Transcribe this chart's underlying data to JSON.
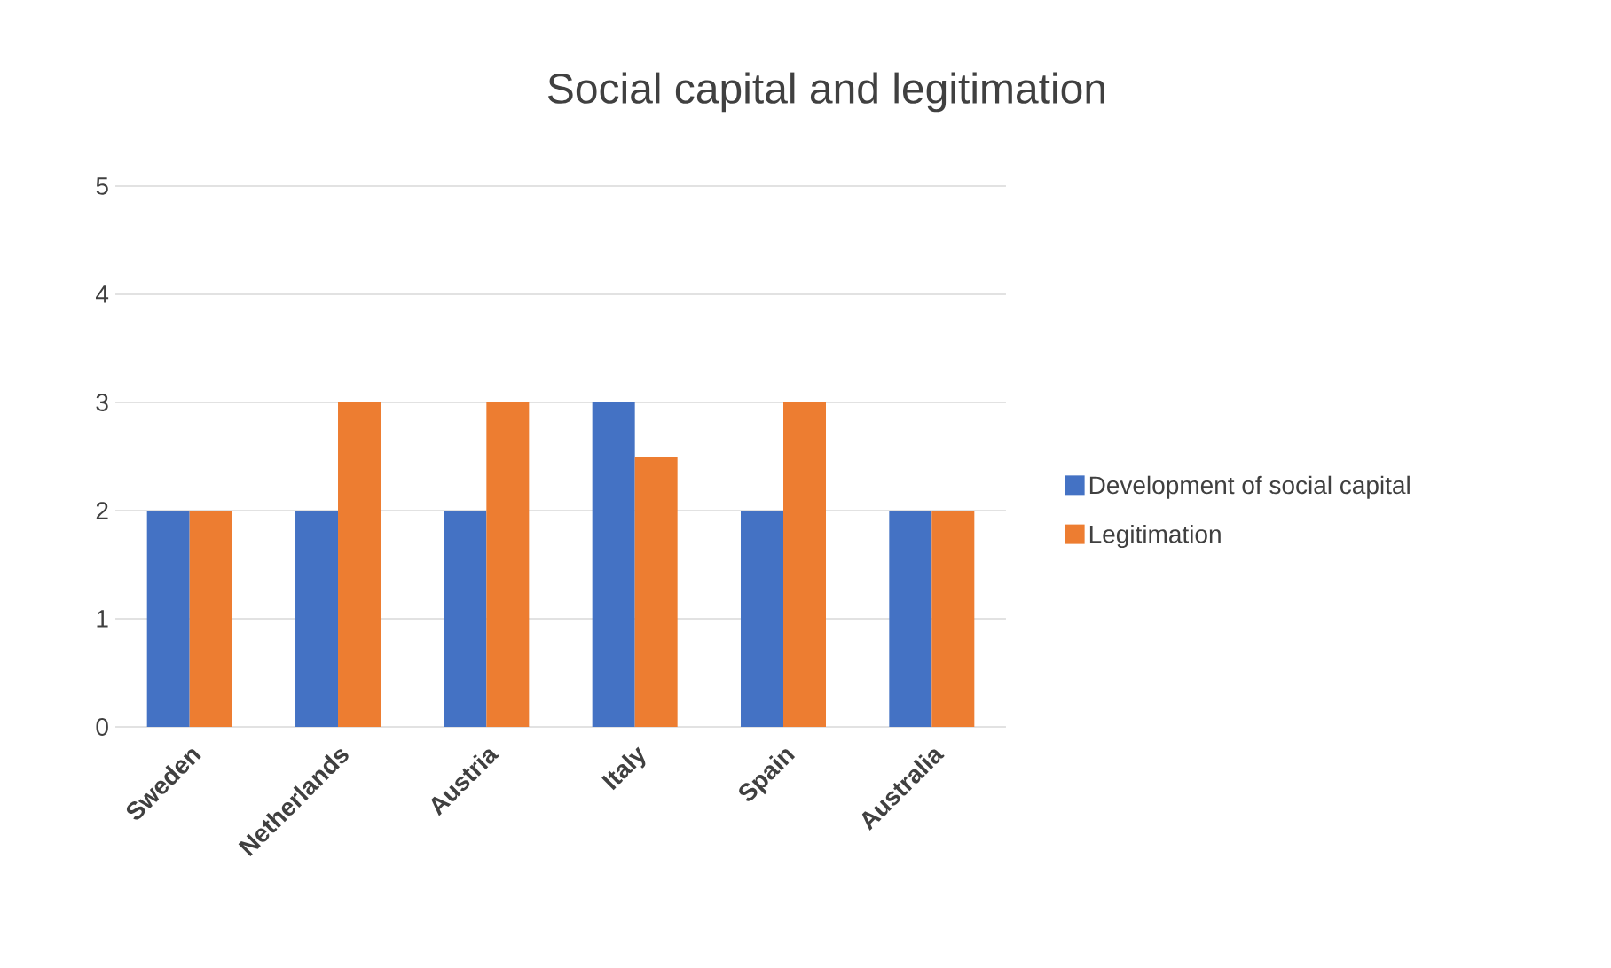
{
  "chart_data": {
    "type": "bar",
    "title": "Social capital and legitimation",
    "categories": [
      "Sweden",
      "Netherlands",
      "Austria",
      "Italy",
      "Spain",
      "Australia"
    ],
    "series": [
      {
        "name": "Development of social capital",
        "color": "#4472c4",
        "values": [
          2,
          2,
          2,
          3,
          2,
          2
        ]
      },
      {
        "name": "Legitimation",
        "color": "#ed7d31",
        "values": [
          2,
          3,
          3,
          2.5,
          3,
          2
        ]
      }
    ],
    "ylim": [
      0,
      5
    ],
    "yticks": [
      0,
      1,
      2,
      3,
      4,
      5
    ],
    "grid": "y",
    "legend": "right"
  }
}
